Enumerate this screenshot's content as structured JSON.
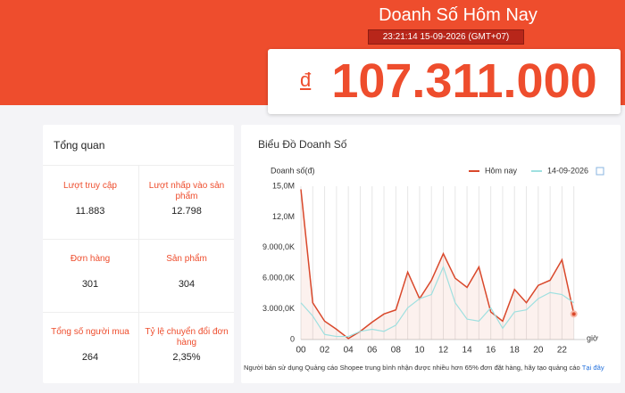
{
  "header": {
    "title": "Doanh Số Hôm Nay",
    "timestamp": "23:21:14 15-09-2026 (GMT+07)",
    "currency": "đ",
    "total": "107.311.000"
  },
  "overview": {
    "title": "Tổng quan",
    "metrics": [
      {
        "label": "Lượt truy cập",
        "value": "11.883"
      },
      {
        "label": "Lượt nhấp vào sản phẩm",
        "value": "12.798"
      },
      {
        "label": "Đơn hàng",
        "value": "301"
      },
      {
        "label": "Sản phẩm",
        "value": "304"
      },
      {
        "label": "Tổng số người mua",
        "value": "264"
      },
      {
        "label": "Tỷ lệ chuyển đổi đơn hàng",
        "value": "2,35%"
      }
    ]
  },
  "chart_data": {
    "type": "line",
    "title": "Biểu Đồ Doanh Số",
    "y_label": "Doanh số(đ)",
    "x_label": "giờ",
    "x": [
      0,
      1,
      2,
      3,
      4,
      5,
      6,
      7,
      8,
      9,
      10,
      11,
      12,
      13,
      14,
      15,
      16,
      17,
      18,
      19,
      20,
      21,
      22,
      23
    ],
    "series": [
      {
        "name": "Hôm nay",
        "color": "#d9482b",
        "values": [
          14700000,
          3600000,
          1800000,
          1000000,
          100000,
          800000,
          1700000,
          2500000,
          2900000,
          6600000,
          4000000,
          5800000,
          8400000,
          6000000,
          5100000,
          7100000,
          2700000,
          1800000,
          4900000,
          3600000,
          5300000,
          5800000,
          7800000,
          2500000
        ]
      },
      {
        "name": "14-09-2026",
        "color": "#9fe0e0",
        "values": [
          3600000,
          2300000,
          500000,
          300000,
          300000,
          800000,
          1000000,
          800000,
          1400000,
          3100000,
          4000000,
          4400000,
          7100000,
          3600000,
          2000000,
          1800000,
          3100000,
          1100000,
          2700000,
          2900000,
          4000000,
          4600000,
          4400000,
          3600000
        ]
      }
    ],
    "xlim": [
      0,
      24
    ],
    "xticks": [
      {
        "value": 0,
        "label": "00"
      },
      {
        "value": 2,
        "label": "02"
      },
      {
        "value": 4,
        "label": "04"
      },
      {
        "value": 6,
        "label": "06"
      },
      {
        "value": 8,
        "label": "08"
      },
      {
        "value": 10,
        "label": "10"
      },
      {
        "value": 12,
        "label": "12"
      },
      {
        "value": 14,
        "label": "14"
      },
      {
        "value": 16,
        "label": "16"
      },
      {
        "value": 18,
        "label": "18"
      },
      {
        "value": 20,
        "label": "20"
      },
      {
        "value": 22,
        "label": "22"
      }
    ],
    "ylim": [
      0,
      15000000
    ],
    "yticks": [
      0,
      {
        "value": 3000000,
        "label": "3.000,0K"
      },
      {
        "value": 6000000,
        "label": "6.000,0K"
      },
      {
        "value": 9000000,
        "label": "9.000,0K"
      },
      {
        "value": 12000000,
        "label": "12,0M"
      },
      {
        "value": 15000000,
        "label": "15,0M"
      }
    ],
    "grid": "x",
    "legend": "top-right",
    "note": "Người bán sử dụng Quảng cáo Shopee trung bình nhận được nhiều hơn 65% đơn đặt hàng, hãy tạo quảng cáo",
    "note_link": "Tại đây"
  }
}
